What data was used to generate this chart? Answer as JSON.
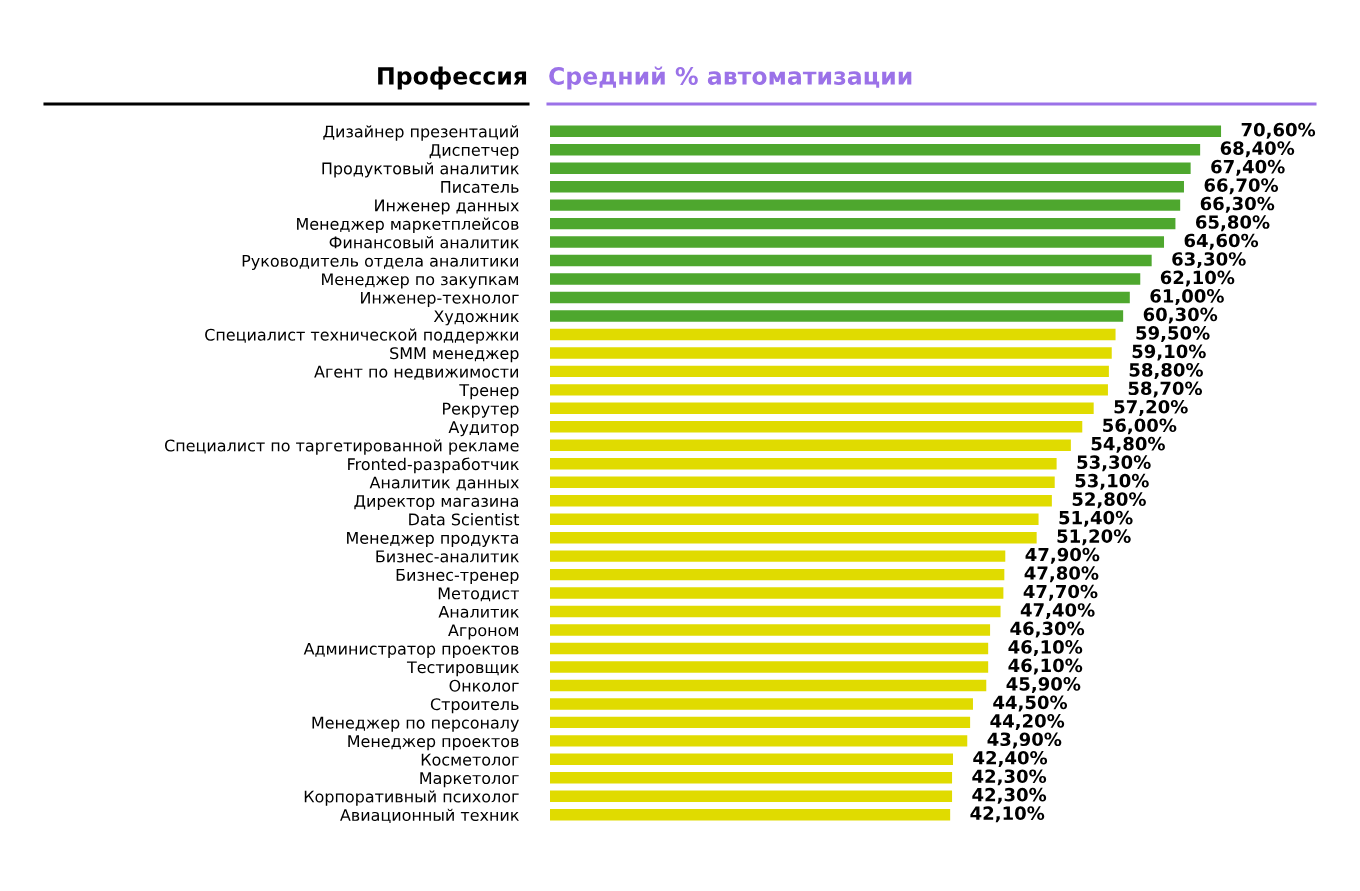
{
  "chart_data": {
    "type": "bar",
    "orientation": "horizontal",
    "title": "Средний % автоматизации",
    "ylabel": "Профессия",
    "tick_labels": "y",
    "categories": [
      "Дизайнер презентаций",
      "Диспетчер",
      "Продуктовый аналитик",
      "Писатель",
      "Инженер данных",
      "Менеджер маркетплейсов",
      "Финансовый аналитик",
      "Руководитель отдела аналитики",
      "Менеджер по закупкам",
      "Инженер-технолог",
      "Художник",
      "Специалист технической поддержки",
      "SMM менеджер",
      "Агент по недвижимости",
      "Тренер",
      "Рекрутер",
      "Аудитор",
      "Специалист по таргетированной рекламе",
      "Fronted-разработчик",
      "Аналитик данных",
      "Директор магазина",
      "Data Scientist",
      "Менеджер продукта",
      "Бизнес-аналитик",
      "Бизнес-тренер",
      "Методист",
      "Аналитик",
      "Агроном",
      "Администратор проектов",
      "Тестировщик",
      "Онколог",
      "Строитель",
      "Менеджер по персоналу",
      "Менеджер проектов",
      "Косметолог",
      "Маркетолог",
      "Корпоративный психолог",
      "Авиационный техник"
    ],
    "values": [
      70.6,
      68.4,
      67.4,
      66.7,
      66.3,
      65.8,
      64.6,
      63.3,
      62.1,
      61.0,
      60.3,
      59.5,
      59.1,
      58.8,
      58.7,
      57.2,
      56.0,
      54.8,
      53.3,
      53.1,
      52.8,
      51.4,
      51.2,
      47.9,
      47.8,
      47.7,
      47.4,
      46.3,
      46.1,
      46.1,
      45.9,
      44.5,
      44.2,
      43.9,
      42.4,
      42.3,
      42.3,
      42.1
    ],
    "value_labels": [
      "70,60%",
      "68,40%",
      "67,40%",
      "66,70%",
      "66,30%",
      "65,80%",
      "64,60%",
      "63,30%",
      "62,10%",
      "61,00%",
      "60,30%",
      "59,50%",
      "59,10%",
      "58,80%",
      "58,70%",
      "57,20%",
      "56,00%",
      "54,80%",
      "53,30%",
      "53,10%",
      "52,80%",
      "51,40%",
      "51,20%",
      "47,90%",
      "47,80%",
      "47,70%",
      "47,40%",
      "46,30%",
      "46,10%",
      "46,10%",
      "45,90%",
      "44,50%",
      "44,20%",
      "43,90%",
      "42,40%",
      "42,30%",
      "42,30%",
      "42,10%"
    ],
    "colors": [
      "#4ea72e",
      "#4ea72e",
      "#4ea72e",
      "#4ea72e",
      "#4ea72e",
      "#4ea72e",
      "#4ea72e",
      "#4ea72e",
      "#4ea72e",
      "#4ea72e",
      "#4ea72e",
      "#e0db00",
      "#e0db00",
      "#e0db00",
      "#e0db00",
      "#e0db00",
      "#e0db00",
      "#e0db00",
      "#e0db00",
      "#e0db00",
      "#e0db00",
      "#e0db00",
      "#e0db00",
      "#e0db00",
      "#e0db00",
      "#e0db00",
      "#e0db00",
      "#e0db00",
      "#e0db00",
      "#e0db00",
      "#e0db00",
      "#e0db00",
      "#e0db00",
      "#e0db00",
      "#e0db00",
      "#e0db00",
      "#e0db00",
      "#e0db00"
    ]
  }
}
